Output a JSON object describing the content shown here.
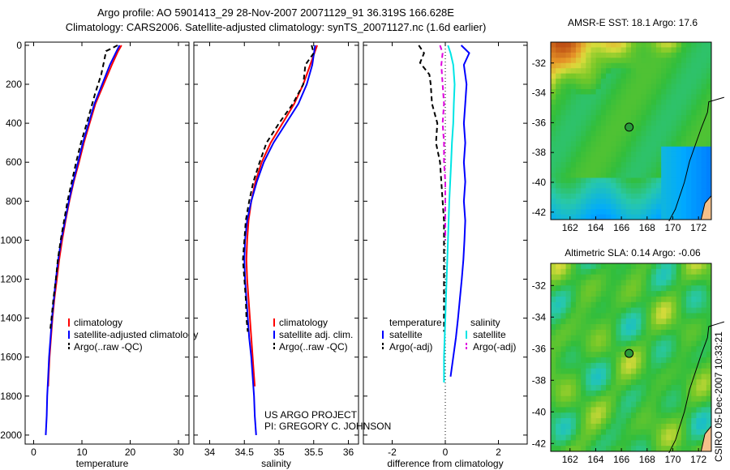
{
  "titles": {
    "line1": "Argo profile: AO 5901413_29 28-Nov-2007 20071129_91 36.319S 166.628E",
    "line2": "Climatology: CARS2006. Satellite-adjusted climatology: synTS_20071127.nc (1.6d earlier)"
  },
  "project": {
    "line1": "US ARGO PROJECT",
    "line2": "PI: GREGORY C. JOHNSON"
  },
  "credit": "CSIRO 05-Dec-2007 10:33:21",
  "colors": {
    "climatology": "#ff0000",
    "satellite": "#0000ff",
    "argo": "#000000",
    "sal_satellite": "#00e5e5",
    "sal_argo": "#e000e0"
  },
  "chart_data": [
    {
      "type": "line",
      "panel": "temperature",
      "xlabel": "temperature",
      "ylabel": "",
      "xlim": [
        -2,
        32
      ],
      "ylim": [
        2080,
        0
      ],
      "xticks": [
        0,
        10,
        20,
        30
      ],
      "yticks": [
        0,
        200,
        400,
        600,
        800,
        1000,
        1200,
        1400,
        1600,
        1800,
        2000
      ],
      "legend": [
        "climatology",
        "satellite-adjusted climatology",
        "Argo(..raw -QC)"
      ],
      "series": [
        {
          "name": "climatology",
          "color": "#ff0000",
          "dash": false,
          "points": [
            [
              18.2,
              0
            ],
            [
              17.5,
              30
            ],
            [
              16.2,
              100
            ],
            [
              14.5,
              200
            ],
            [
              12.8,
              300
            ],
            [
              11.6,
              400
            ],
            [
              10.4,
              500
            ],
            [
              9.4,
              600
            ],
            [
              8.3,
              700
            ],
            [
              7.4,
              800
            ],
            [
              6.6,
              900
            ],
            [
              5.9,
              1000
            ],
            [
              5.3,
              1100
            ],
            [
              4.8,
              1200
            ],
            [
              4.3,
              1300
            ],
            [
              3.9,
              1400
            ],
            [
              3.6,
              1500
            ],
            [
              3.3,
              1600
            ],
            [
              3.1,
              1700
            ],
            [
              3.0,
              1750
            ]
          ]
        },
        {
          "name": "satellite-adjusted climatology",
          "color": "#0000ff",
          "dash": false,
          "points": [
            [
              17.8,
              0
            ],
            [
              17.2,
              30
            ],
            [
              15.8,
              100
            ],
            [
              14.2,
              200
            ],
            [
              12.6,
              300
            ],
            [
              11.4,
              400
            ],
            [
              10.2,
              500
            ],
            [
              9.2,
              600
            ],
            [
              8.2,
              700
            ],
            [
              7.3,
              800
            ],
            [
              6.5,
              900
            ],
            [
              5.7,
              1000
            ],
            [
              5.1,
              1100
            ],
            [
              4.6,
              1200
            ],
            [
              4.2,
              1300
            ],
            [
              3.8,
              1400
            ],
            [
              3.5,
              1500
            ],
            [
              3.2,
              1600
            ],
            [
              3.0,
              1700
            ],
            [
              2.8,
              1800
            ],
            [
              2.7,
              1900
            ],
            [
              2.5,
              2000
            ]
          ]
        },
        {
          "name": "Argo(..raw -QC)",
          "color": "#000000",
          "dash": true,
          "points": [
            [
              17.4,
              0
            ],
            [
              15.0,
              30
            ],
            [
              14.6,
              80
            ],
            [
              14.0,
              150
            ],
            [
              12.7,
              250
            ],
            [
              11.0,
              400
            ],
            [
              9.8,
              500
            ],
            [
              8.8,
              600
            ],
            [
              7.9,
              700
            ],
            [
              7.0,
              800
            ],
            [
              6.3,
              900
            ],
            [
              5.6,
              1000
            ],
            [
              5.0,
              1100
            ],
            [
              4.6,
              1200
            ],
            [
              4.1,
              1300
            ],
            [
              3.7,
              1400
            ],
            [
              3.4,
              1470
            ]
          ]
        }
      ]
    },
    {
      "type": "line",
      "panel": "salinity",
      "xlabel": "salinity",
      "ylabel": "",
      "xlim": [
        33.8,
        36.2
      ],
      "ylim": [
        2080,
        0
      ],
      "xticks": [
        34,
        34.5,
        35,
        35.5,
        36
      ],
      "legend": [
        "climatology",
        "satellite adj. clim.",
        "Argo(..raw -QC)"
      ],
      "series": [
        {
          "name": "climatology",
          "color": "#ff0000",
          "dash": false,
          "points": [
            [
              35.55,
              0
            ],
            [
              35.5,
              50
            ],
            [
              35.45,
              100
            ],
            [
              35.35,
              200
            ],
            [
              35.22,
              300
            ],
            [
              35.05,
              400
            ],
            [
              34.88,
              500
            ],
            [
              34.75,
              600
            ],
            [
              34.66,
              700
            ],
            [
              34.6,
              800
            ],
            [
              34.56,
              900
            ],
            [
              34.54,
              1000
            ],
            [
              34.53,
              1100
            ],
            [
              34.54,
              1200
            ],
            [
              34.56,
              1300
            ],
            [
              34.58,
              1400
            ],
            [
              34.6,
              1500
            ],
            [
              34.62,
              1600
            ],
            [
              34.64,
              1700
            ],
            [
              34.65,
              1750
            ]
          ]
        },
        {
          "name": "satellite adj. clim.",
          "color": "#0000ff",
          "dash": false,
          "points": [
            [
              35.52,
              0
            ],
            [
              35.5,
              50
            ],
            [
              35.48,
              100
            ],
            [
              35.4,
              200
            ],
            [
              35.28,
              300
            ],
            [
              35.1,
              400
            ],
            [
              34.92,
              500
            ],
            [
              34.78,
              600
            ],
            [
              34.68,
              700
            ],
            [
              34.6,
              800
            ],
            [
              34.54,
              900
            ],
            [
              34.51,
              1000
            ],
            [
              34.5,
              1100
            ],
            [
              34.51,
              1200
            ],
            [
              34.53,
              1300
            ],
            [
              34.55,
              1400
            ],
            [
              34.57,
              1500
            ],
            [
              34.6,
              1600
            ],
            [
              34.62,
              1700
            ],
            [
              34.64,
              1800
            ],
            [
              34.65,
              1900
            ],
            [
              34.67,
              2000
            ]
          ]
        },
        {
          "name": "Argo(..raw -QC)",
          "color": "#000000",
          "dash": true,
          "points": [
            [
              35.47,
              0
            ],
            [
              35.5,
              40
            ],
            [
              35.38,
              100
            ],
            [
              35.35,
              200
            ],
            [
              35.2,
              300
            ],
            [
              35.0,
              400
            ],
            [
              34.82,
              500
            ],
            [
              34.72,
              600
            ],
            [
              34.63,
              700
            ],
            [
              34.57,
              800
            ],
            [
              34.52,
              900
            ],
            [
              34.5,
              1000
            ],
            [
              34.48,
              1100
            ],
            [
              34.5,
              1200
            ],
            [
              34.52,
              1300
            ],
            [
              34.53,
              1400
            ],
            [
              34.55,
              1470
            ]
          ]
        }
      ]
    },
    {
      "type": "line",
      "panel": "difference",
      "xlabel": "difference from climatology",
      "ylabel": "",
      "xlim": [
        -3,
        3
      ],
      "ylim": [
        2080,
        0
      ],
      "xticks": [
        -2,
        0,
        2
      ],
      "legend_left": {
        "title": "temperature",
        "items": [
          "satellite",
          "Argo(-adj)"
        ]
      },
      "legend_right": {
        "title": "salinity",
        "items": [
          "satellite",
          "Argo(-adj)"
        ]
      },
      "series": [
        {
          "name": "temperature satellite",
          "color": "#0000ff",
          "dash": false,
          "points": [
            [
              0.6,
              0
            ],
            [
              0.9,
              40
            ],
            [
              0.7,
              100
            ],
            [
              0.8,
              200
            ],
            [
              0.75,
              300
            ],
            [
              0.7,
              400
            ],
            [
              0.75,
              500
            ],
            [
              0.7,
              600
            ],
            [
              0.75,
              700
            ],
            [
              0.7,
              800
            ],
            [
              0.75,
              900
            ],
            [
              0.72,
              1000
            ],
            [
              0.68,
              1100
            ],
            [
              0.62,
              1200
            ],
            [
              0.55,
              1300
            ],
            [
              0.48,
              1400
            ],
            [
              0.4,
              1500
            ],
            [
              0.3,
              1600
            ],
            [
              0.2,
              1700
            ]
          ]
        },
        {
          "name": "temperature Argo(-adj)",
          "color": "#000000",
          "dash": true,
          "points": [
            [
              -1.0,
              0
            ],
            [
              -0.8,
              40
            ],
            [
              -0.95,
              90
            ],
            [
              -0.6,
              150
            ],
            [
              -0.55,
              200
            ],
            [
              -0.5,
              300
            ],
            [
              -0.3,
              400
            ],
            [
              -0.35,
              500
            ],
            [
              -0.2,
              600
            ],
            [
              -0.15,
              700
            ],
            [
              -0.1,
              800
            ],
            [
              -0.05,
              900
            ],
            [
              -0.05,
              1000
            ],
            [
              -0.05,
              1200
            ],
            [
              -0.05,
              1400
            ],
            [
              -0.05,
              1470
            ]
          ]
        },
        {
          "name": "salinity satellite",
          "color": "#00e5e5",
          "dash": false,
          "points": [
            [
              0.1,
              0
            ],
            [
              0.2,
              40
            ],
            [
              0.3,
              100
            ],
            [
              0.35,
              200
            ],
            [
              0.32,
              300
            ],
            [
              0.3,
              400
            ],
            [
              0.25,
              500
            ],
            [
              0.22,
              600
            ],
            [
              0.15,
              800
            ],
            [
              0.1,
              1000
            ],
            [
              0.05,
              1200
            ],
            [
              0.0,
              1400
            ],
            [
              -0.05,
              1600
            ],
            [
              -0.05,
              1730
            ]
          ]
        },
        {
          "name": "salinity Argo(-adj)",
          "color": "#e000e0",
          "dash": true,
          "points": [
            [
              -0.2,
              0
            ],
            [
              -0.1,
              40
            ],
            [
              -0.15,
              100
            ],
            [
              -0.1,
              200
            ],
            [
              -0.05,
              300
            ],
            [
              -0.1,
              400
            ],
            [
              -0.05,
              500
            ],
            [
              -0.05,
              600
            ],
            [
              0.0,
              700
            ],
            [
              0.0,
              800
            ],
            [
              0.0,
              1000
            ]
          ]
        }
      ]
    },
    {
      "type": "heatmap",
      "panel": "AMSR-E SST",
      "title": "AMSR-E SST: 18.1 Argo: 17.6",
      "xticks": [
        162,
        164,
        166,
        168,
        170,
        172
      ],
      "yticks": [
        -32,
        -34,
        -36,
        -38,
        -40,
        -42
      ],
      "xlim": [
        160.5,
        173
      ],
      "ylim": [
        -42.5,
        -30.6
      ],
      "argo_position": [
        166.6,
        -36.3
      ]
    },
    {
      "type": "heatmap",
      "panel": "Altimetric SLA",
      "title": "Altimetric SLA: 0.14  Argo: -0.06",
      "xticks": [
        162,
        164,
        166,
        168,
        170,
        172
      ],
      "yticks": [
        -32,
        -34,
        -36,
        -38,
        -40,
        -42
      ],
      "xlim": [
        160.5,
        173
      ],
      "ylim": [
        -42.5,
        -30.6
      ],
      "argo_position": [
        166.6,
        -36.3
      ]
    }
  ]
}
